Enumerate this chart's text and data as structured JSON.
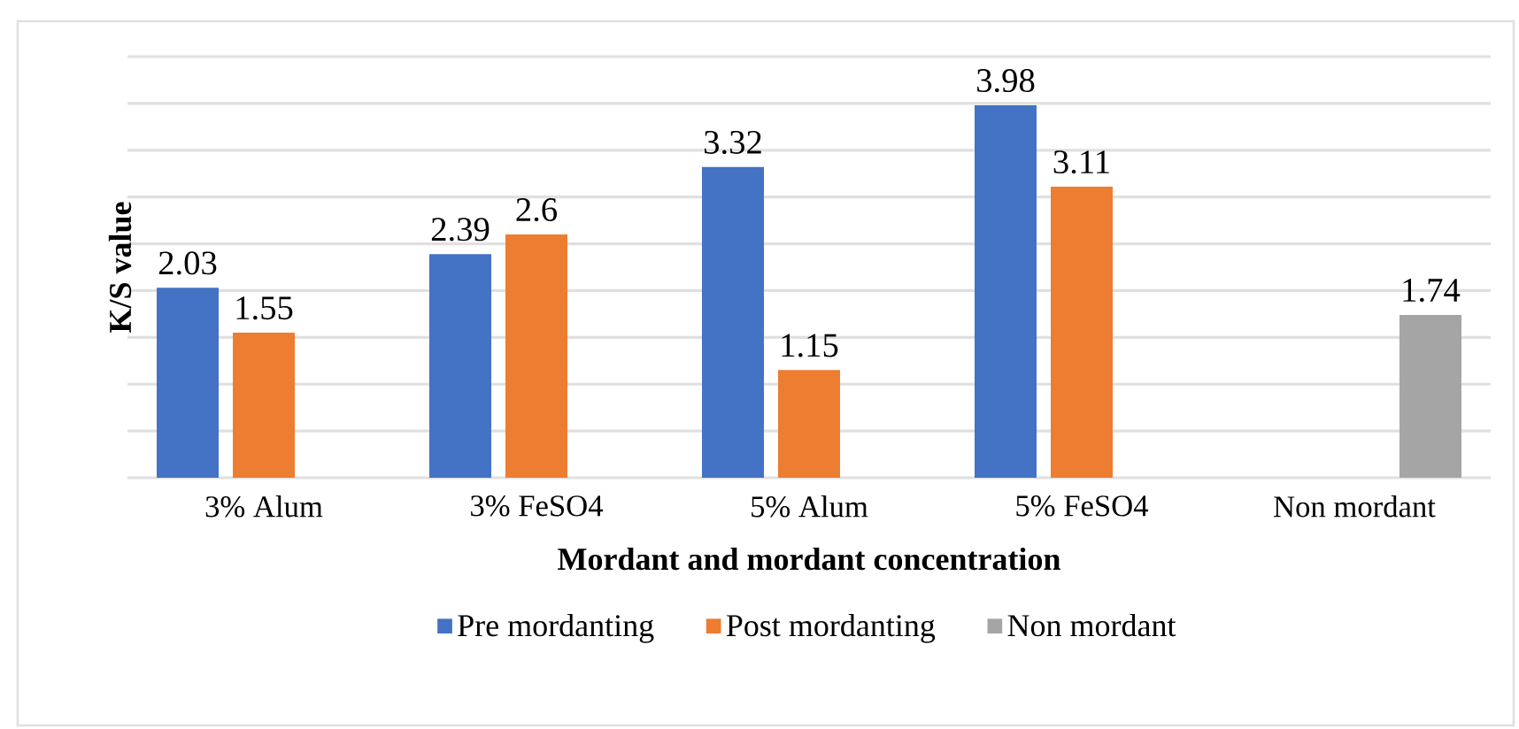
{
  "chart_data": {
    "type": "bar",
    "xlabel": "Mordant and mordant concentration",
    "ylabel": "K/S value",
    "categories": [
      "3% Alum",
      "3% FeSO4",
      "5% Alum",
      "5% FeSO4",
      "Non mordant"
    ],
    "series": [
      {
        "name": "Pre mordanting",
        "color": "#4472c4",
        "values": [
          2.03,
          2.39,
          3.32,
          3.98,
          null
        ]
      },
      {
        "name": "Post mordanting",
        "color": "#ed7d31",
        "values": [
          1.55,
          2.6,
          1.15,
          3.11,
          null
        ]
      },
      {
        "name": "Non mordant",
        "color": "#a5a5a5",
        "values": [
          null,
          null,
          null,
          null,
          1.74
        ]
      }
    ],
    "ylim": [
      0,
      4.5
    ],
    "yticks": [
      {
        "value": 0,
        "label": null
      },
      {
        "value": 0.5,
        "label": null
      },
      {
        "value": 1,
        "label": null
      },
      {
        "value": 1.5,
        "label": null
      },
      {
        "value": 2,
        "label": null
      },
      {
        "value": 2.5,
        "label": null
      },
      {
        "value": 3,
        "label": null
      },
      {
        "value": 3.5,
        "label": null
      },
      {
        "value": 4,
        "label": null
      },
      {
        "value": 4.5,
        "label": null
      }
    ],
    "tick_labels": "x",
    "grid": "y",
    "data_labels": true,
    "legend": "bottom"
  }
}
